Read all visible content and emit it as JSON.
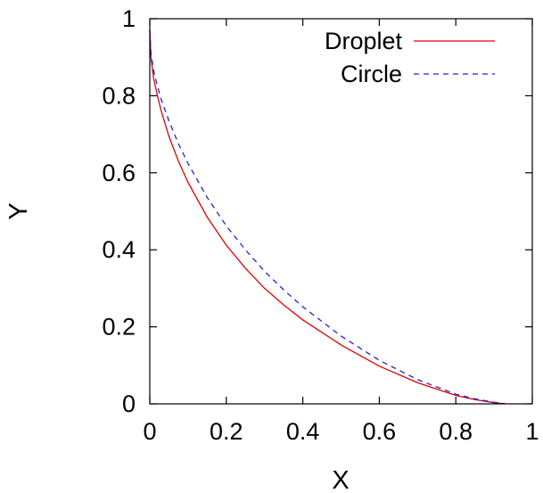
{
  "chart_data": {
    "type": "line",
    "title": "",
    "xlabel": "X",
    "ylabel": "Y",
    "xlim": [
      0,
      1
    ],
    "ylim": [
      0,
      1
    ],
    "x_ticks": [
      "0",
      "0.2",
      "0.4",
      "0.6",
      "0.8",
      "1"
    ],
    "y_ticks": [
      "0",
      "0.2",
      "0.4",
      "0.6",
      "0.8",
      "1"
    ],
    "grid": false,
    "legend_position": "top-right",
    "series": [
      {
        "name": "Droplet",
        "color": "#e00000",
        "style": "solid",
        "x": [
          0.0,
          0.003,
          0.01,
          0.02,
          0.03,
          0.05,
          0.075,
          0.1,
          0.15,
          0.2,
          0.25,
          0.3,
          0.35,
          0.4,
          0.5,
          0.6,
          0.7,
          0.8,
          0.85,
          0.9,
          0.93
        ],
        "y": [
          0.97,
          0.9,
          0.845,
          0.8,
          0.76,
          0.695,
          0.63,
          0.575,
          0.485,
          0.412,
          0.352,
          0.3,
          0.257,
          0.218,
          0.153,
          0.098,
          0.055,
          0.022,
          0.011,
          0.003,
          0.0
        ]
      },
      {
        "name": "Circle",
        "color": "#2020dd",
        "style": "dashed",
        "x": [
          0.0,
          0.003,
          0.01,
          0.02,
          0.03,
          0.05,
          0.075,
          0.1,
          0.15,
          0.2,
          0.25,
          0.3,
          0.35,
          0.4,
          0.5,
          0.6,
          0.7,
          0.8,
          0.85,
          0.9,
          0.93
        ],
        "y": [
          0.97,
          0.91,
          0.865,
          0.825,
          0.79,
          0.735,
          0.675,
          0.624,
          0.536,
          0.462,
          0.4,
          0.344,
          0.296,
          0.252,
          0.176,
          0.113,
          0.063,
          0.025,
          0.013,
          0.004,
          0.0
        ]
      }
    ]
  }
}
